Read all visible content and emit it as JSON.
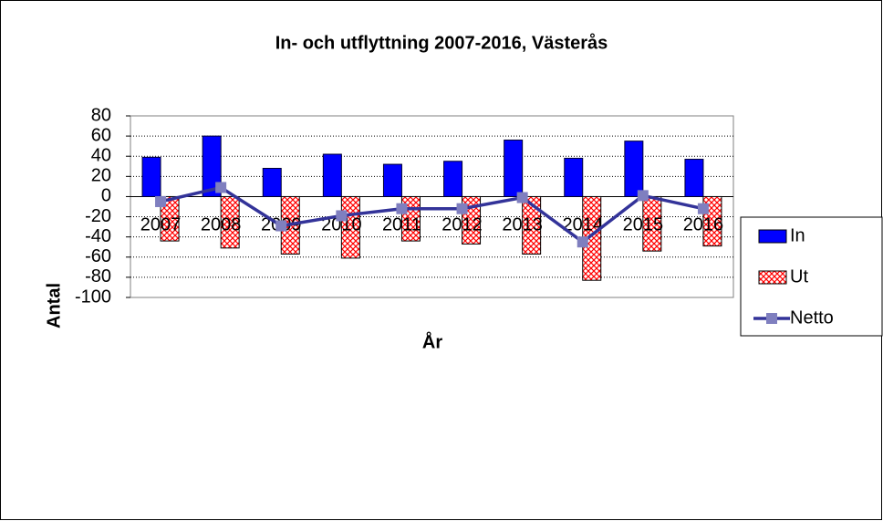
{
  "chart_data": {
    "type": "bar",
    "title": "In- och utflyttning 2007-2016, Västerås",
    "xlabel": "År",
    "ylabel": "Antal",
    "categories": [
      "2007",
      "2008",
      "2009",
      "2010",
      "2011",
      "2012",
      "2013",
      "2014",
      "2015",
      "2016"
    ],
    "series": [
      {
        "name": "In",
        "color": "#0000ff",
        "values": [
          39,
          60,
          28,
          42,
          32,
          35,
          56,
          38,
          55,
          37
        ]
      },
      {
        "name": "Ut",
        "color": "#ff0000",
        "pattern": "crosshatch",
        "values": [
          -44,
          -51,
          -57,
          -61,
          -44,
          -47,
          -57,
          -83,
          -54,
          -49
        ]
      },
      {
        "name": "Netto",
        "type": "line",
        "color": "#333399",
        "marker_color": "#7f7fbf",
        "values": [
          -5,
          9,
          -29,
          -19,
          -12,
          -12,
          -1,
          -45,
          1,
          -12
        ]
      }
    ],
    "ylim": [
      -100,
      80
    ],
    "yticks": [
      -100,
      -80,
      -60,
      -40,
      -20,
      0,
      20,
      40,
      60,
      80
    ],
    "grid": true,
    "legend": "right"
  }
}
